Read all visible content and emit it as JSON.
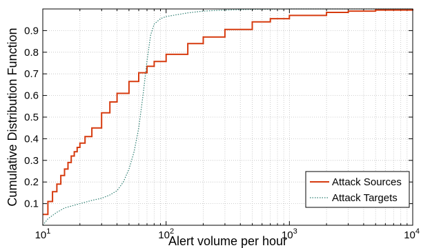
{
  "chart_data": {
    "type": "line",
    "title": "",
    "xlabel": "Alert volume per hour",
    "ylabel": "Cumulative Distribution Function",
    "xscale": "log",
    "xlim": [
      10,
      10000
    ],
    "ylim": [
      0,
      1
    ],
    "grid": true,
    "legend_position": "bottom-right",
    "x_ticks": [
      {
        "value": 10,
        "base": "10",
        "exp": "1"
      },
      {
        "value": 100,
        "base": "10",
        "exp": "2"
      },
      {
        "value": 1000,
        "base": "10",
        "exp": "3"
      },
      {
        "value": 10000,
        "base": "10",
        "exp": "4"
      }
    ],
    "y_ticks": [
      {
        "value": 0.1,
        "label": "0.1"
      },
      {
        "value": 0.2,
        "label": "0.2"
      },
      {
        "value": 0.3,
        "label": "0.3"
      },
      {
        "value": 0.4,
        "label": "0.4"
      },
      {
        "value": 0.5,
        "label": "0.5"
      },
      {
        "value": 0.6,
        "label": "0.6"
      },
      {
        "value": 0.7,
        "label": "0.7"
      },
      {
        "value": 0.8,
        "label": "0.8"
      },
      {
        "value": 0.9,
        "label": "0.9"
      }
    ],
    "series": [
      {
        "name": "Attack Sources",
        "color": "#d63a0e",
        "style": "solid",
        "step": true,
        "x": [
          10,
          11,
          12,
          13,
          14,
          15,
          16,
          17,
          18,
          19,
          20,
          22,
          25,
          30,
          35,
          40,
          50,
          60,
          70,
          80,
          100,
          150,
          200,
          300,
          500,
          700,
          1000,
          2000,
          3000,
          5000,
          10000
        ],
        "y": [
          0.05,
          0.11,
          0.155,
          0.19,
          0.23,
          0.26,
          0.29,
          0.32,
          0.34,
          0.36,
          0.38,
          0.41,
          0.45,
          0.52,
          0.57,
          0.61,
          0.665,
          0.705,
          0.735,
          0.757,
          0.79,
          0.84,
          0.87,
          0.905,
          0.94,
          0.955,
          0.97,
          0.984,
          0.99,
          0.995,
          1.0
        ]
      },
      {
        "name": "Attack Targets",
        "color": "#2a7d70",
        "style": "dotted",
        "step": false,
        "x": [
          10,
          11,
          13,
          15,
          20,
          25,
          30,
          35,
          40,
          45,
          50,
          55,
          60,
          65,
          70,
          75,
          80,
          90,
          100,
          150,
          200,
          300,
          500,
          1000,
          10000
        ],
        "y": [
          0.0,
          0.03,
          0.06,
          0.08,
          0.1,
          0.115,
          0.125,
          0.14,
          0.16,
          0.2,
          0.26,
          0.34,
          0.45,
          0.6,
          0.76,
          0.88,
          0.93,
          0.955,
          0.965,
          0.982,
          0.99,
          0.995,
          0.998,
          1.0,
          1.0
        ]
      }
    ]
  }
}
